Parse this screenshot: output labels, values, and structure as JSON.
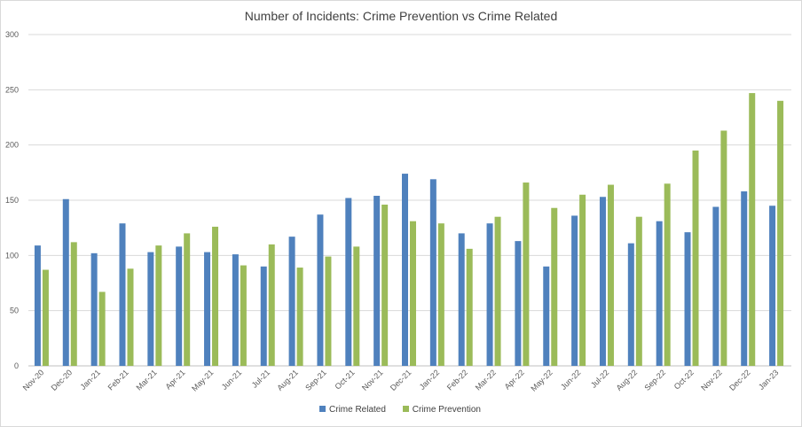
{
  "chart_data": {
    "type": "bar",
    "title": "Number of Incidents: Crime Prevention vs Crime Related",
    "xlabel": "",
    "ylabel": "",
    "ylim": [
      0,
      300
    ],
    "yticks": [
      0,
      50,
      100,
      150,
      200,
      250,
      300
    ],
    "grid": true,
    "legend": "bottom",
    "categories": [
      "Nov-20",
      "Dec-20",
      "Jan-21",
      "Feb-21",
      "Mar-21",
      "Apr-21",
      "May-21",
      "Jun-21",
      "Jul-21",
      "Aug-21",
      "Sep-21",
      "Oct-21",
      "Nov-21",
      "Dec-21",
      "Jan-22",
      "Feb-22",
      "Mar-22",
      "Apr-22",
      "May-22",
      "Jun-22",
      "Jul-22",
      "Aug-22",
      "Sep-22",
      "Oct-22",
      "Nov-22",
      "Dec-22",
      "Jan-23"
    ],
    "series": [
      {
        "name": "Crime Related",
        "color": "#4f81bd",
        "values": [
          109,
          151,
          102,
          129,
          103,
          108,
          103,
          101,
          90,
          117,
          137,
          152,
          154,
          174,
          169,
          120,
          129,
          113,
          90,
          136,
          153,
          111,
          131,
          121,
          144,
          158,
          145
        ]
      },
      {
        "name": "Crime Prevention",
        "color": "#9bbb59",
        "values": [
          87,
          112,
          67,
          88,
          109,
          120,
          126,
          91,
          110,
          89,
          99,
          108,
          146,
          131,
          129,
          106,
          135,
          166,
          143,
          155,
          164,
          135,
          165,
          195,
          213,
          247,
          240
        ]
      }
    ]
  }
}
